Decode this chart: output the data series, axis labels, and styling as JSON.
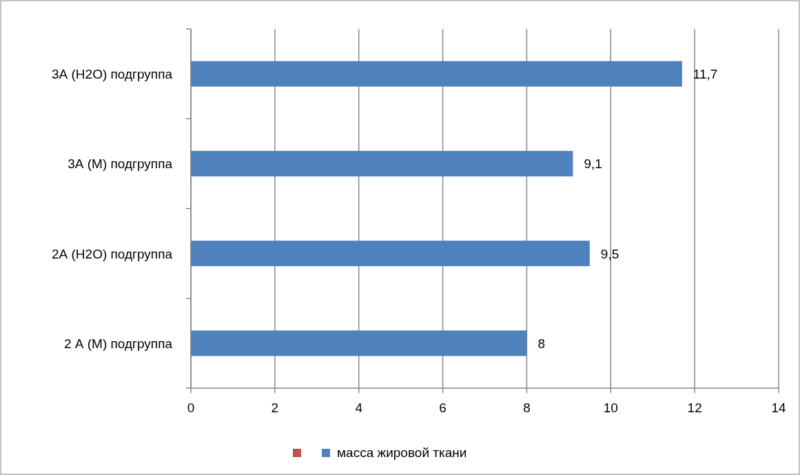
{
  "chart_data": {
    "type": "bar",
    "orientation": "horizontal",
    "categories": [
      "3А (H2O) подгруппа",
      "3А (М) подгруппа",
      "2А (H2O) подгруппа",
      "2 А (М) подгруппа"
    ],
    "series": [
      {
        "color": "#c0504d",
        "values": [
          null,
          null,
          null,
          null
        ]
      },
      {
        "name": "масса жировой ткани",
        "color": "#4f81bd",
        "values": [
          11.7,
          9.1,
          9.5,
          8
        ],
        "value_labels": [
          "11,7",
          "9,1",
          "9,5",
          "8"
        ]
      }
    ],
    "xlim": [
      0,
      14
    ],
    "xticks": [
      0,
      2,
      4,
      6,
      8,
      10,
      12,
      14
    ],
    "grid": "x",
    "legend": "bottom"
  }
}
